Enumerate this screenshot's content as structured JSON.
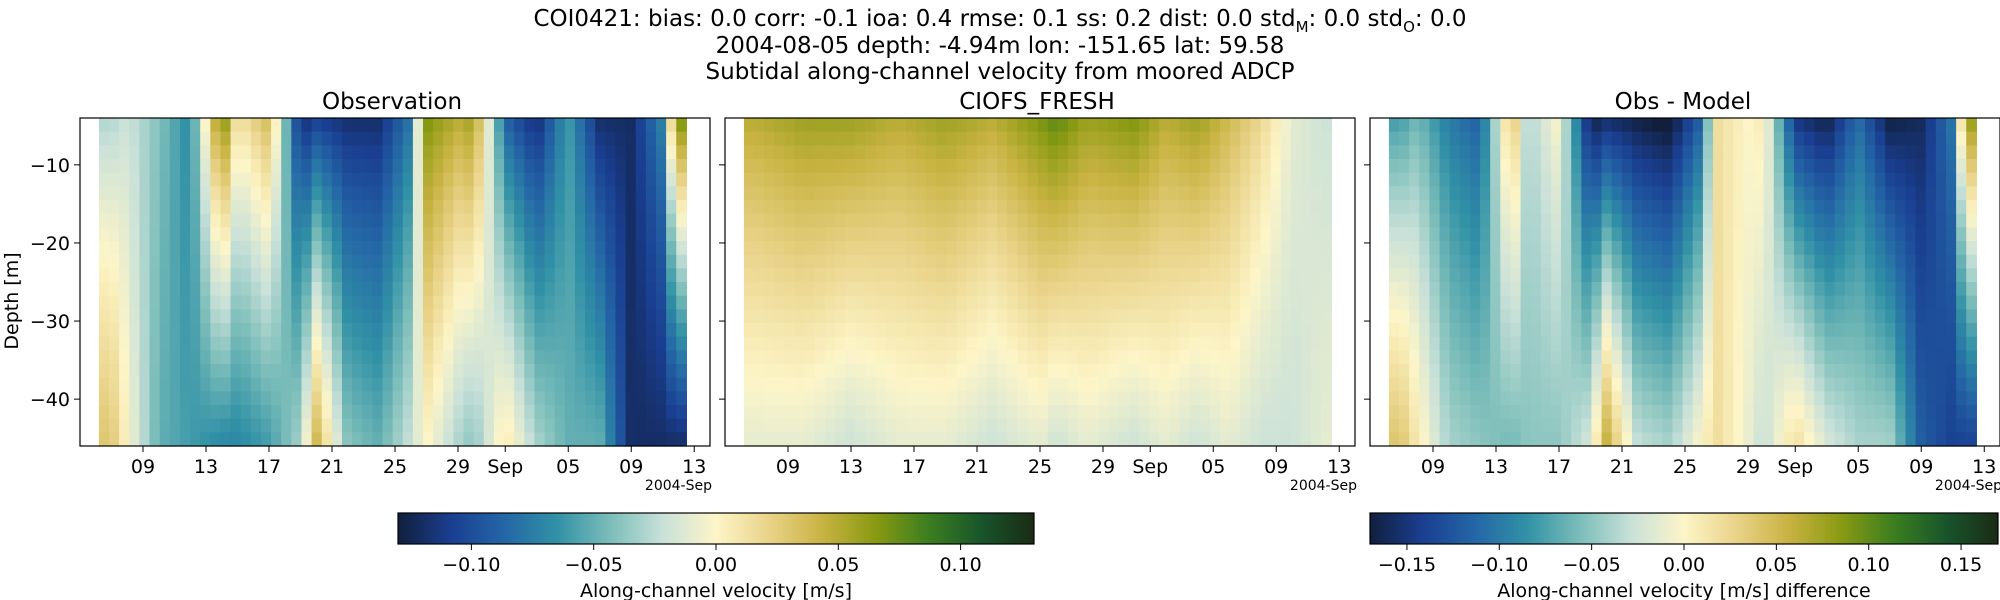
{
  "figure": {
    "title_line1": "COI0421: bias: 0.0  corr: -0.1  ioa: 0.4  rmse: 0.1  ss: 0.2  dist: 0.0  std",
    "sub_model": "M",
    "title_line1_mid": ": 0.0  std",
    "sub_obs": "O",
    "title_line1_end": ": 0.0",
    "title_line2": "2004-08-05 depth: -4.94m lon: -151.65 lat: 59.58",
    "title_line3": "Subtidal along-channel velocity from moored ADCP"
  },
  "colormap": {
    "name": "delta",
    "stops": [
      "#111f3c",
      "#1a3e91",
      "#2466a6",
      "#3191a6",
      "#7bbdb9",
      "#c9e1d9",
      "#fdf5c8",
      "#e9d389",
      "#c8b342",
      "#8a9a12",
      "#3c7e1f",
      "#18552b",
      "#1a2b15"
    ]
  },
  "chart_data": [
    {
      "type": "heatmap",
      "title": "Observation",
      "xlabel": "",
      "ylabel": "Depth [m]",
      "x_tick_labels": [
        "09",
        "13",
        "17",
        "21",
        "25",
        "29",
        "Sep",
        "05",
        "09",
        "13"
      ],
      "x_offset_label": "2004-Sep",
      "x_range": [
        "2004-08-05",
        "2004-09-14"
      ],
      "y_ticks": [
        -10,
        -20,
        -30,
        -40
      ],
      "ylim": [
        -46,
        -4
      ],
      "z_unit": "m/s",
      "approx_time_depth_field": {
        "description_dates": [
          "08-07",
          "08-08",
          "08-10",
          "08-12",
          "08-14",
          "08-15",
          "08-17",
          "08-19",
          "08-20",
          "08-22",
          "08-24",
          "08-26",
          "08-27",
          "08-29",
          "08-30",
          "09-01",
          "09-03",
          "09-05",
          "09-07",
          "09-09",
          "09-11",
          "09-12",
          "09-13"
        ],
        "surface_values": [
          -0.03,
          -0.02,
          -0.04,
          -0.07,
          0.08,
          0.01,
          0.04,
          -0.12,
          -0.11,
          -0.12,
          -0.12,
          -0.08,
          0.07,
          0.05,
          0.06,
          -0.09,
          -0.12,
          -0.06,
          -0.12,
          -0.12,
          -0.07,
          0.1,
          -0.05
        ],
        "bottom_values": [
          0.03,
          0.0,
          -0.05,
          -0.06,
          -0.07,
          -0.07,
          -0.06,
          -0.03,
          0.04,
          -0.04,
          -0.05,
          -0.02,
          0.0,
          -0.03,
          -0.04,
          0.01,
          -0.03,
          -0.05,
          -0.05,
          -0.12,
          -0.12,
          -0.12,
          -0.12
        ]
      }
    },
    {
      "type": "heatmap",
      "title": "CIOFS_FRESH",
      "xlabel": "",
      "ylabel": "",
      "x_tick_labels": [
        "09",
        "13",
        "17",
        "21",
        "25",
        "29",
        "Sep",
        "05",
        "09",
        "13"
      ],
      "x_offset_label": "2004-Sep",
      "x_range": [
        "2004-08-05",
        "2004-09-14"
      ],
      "y_ticks": [
        -10,
        -20,
        -30,
        -40
      ],
      "ylim": [
        -46,
        -4
      ],
      "z_unit": "m/s",
      "approx_time_depth_field": {
        "description_dates": [
          "08-07",
          "08-10",
          "08-13",
          "08-16",
          "08-19",
          "08-22",
          "08-25",
          "08-26",
          "08-28",
          "08-31",
          "09-02",
          "09-04",
          "09-06",
          "09-08",
          "09-10",
          "09-12"
        ],
        "surface_values": [
          0.05,
          0.06,
          0.06,
          0.05,
          0.06,
          0.05,
          0.07,
          0.08,
          0.06,
          0.07,
          0.05,
          0.06,
          0.04,
          0.02,
          -0.01,
          -0.02
        ],
        "bottom_values": [
          -0.01,
          -0.01,
          -0.02,
          -0.01,
          -0.01,
          -0.02,
          -0.01,
          -0.02,
          -0.01,
          -0.02,
          -0.01,
          -0.02,
          -0.01,
          -0.02,
          -0.02,
          -0.01
        ]
      }
    },
    {
      "type": "heatmap",
      "title": "Obs - Model",
      "xlabel": "",
      "ylabel": "",
      "x_tick_labels": [
        "09",
        "13",
        "17",
        "21",
        "25",
        "29",
        "Sep",
        "05",
        "09",
        "13"
      ],
      "x_offset_label": "2004-Sep",
      "x_range": [
        "2004-08-05",
        "2004-09-14"
      ],
      "y_ticks": [
        -10,
        -20,
        -30,
        -40
      ],
      "ylim": [
        -46,
        -4
      ],
      "z_unit": "m/s difference",
      "approx_time_depth_field": {
        "description_dates": [
          "08-07",
          "08-08",
          "08-10",
          "08-12",
          "08-14",
          "08-15",
          "08-17",
          "08-19",
          "08-20",
          "08-22",
          "08-24",
          "08-26",
          "08-27",
          "08-29",
          "08-30",
          "09-01",
          "09-03",
          "09-05",
          "09-07",
          "09-09",
          "09-11",
          "09-12",
          "09-13"
        ],
        "surface_values": [
          -0.08,
          -0.06,
          -0.1,
          -0.12,
          0.05,
          -0.04,
          0.0,
          -0.17,
          -0.16,
          -0.17,
          -0.18,
          -0.12,
          0.02,
          0.0,
          0.01,
          -0.15,
          -0.17,
          -0.11,
          -0.17,
          -0.16,
          -0.1,
          0.12,
          -0.08
        ],
        "bottom_values": [
          0.04,
          0.01,
          -0.04,
          -0.05,
          -0.06,
          -0.05,
          -0.05,
          -0.02,
          0.06,
          -0.03,
          -0.04,
          0.0,
          0.02,
          -0.01,
          -0.03,
          0.02,
          -0.02,
          -0.04,
          -0.04,
          -0.12,
          -0.14,
          -0.14,
          -0.14
        ]
      }
    }
  ],
  "colorbars": [
    {
      "label": "Along-channel velocity [m/s]",
      "range": [
        -0.13,
        0.13
      ],
      "ticks": [
        -0.1,
        -0.05,
        0.0,
        0.05,
        0.1
      ],
      "tick_labels": [
        "−0.10",
        "−0.05",
        "0.00",
        "0.05",
        "0.10"
      ]
    },
    {
      "label": "Along-channel velocity [m/s] difference",
      "range": [
        -0.17,
        0.17
      ],
      "ticks": [
        -0.15,
        -0.1,
        -0.05,
        0.0,
        0.05,
        0.1,
        0.15
      ],
      "tick_labels": [
        "−0.15",
        "−0.10",
        "−0.05",
        "0.00",
        "0.05",
        "0.10",
        "0.15"
      ]
    }
  ],
  "y_tick_labels": [
    "−10",
    "−20",
    "−30",
    "−40"
  ]
}
